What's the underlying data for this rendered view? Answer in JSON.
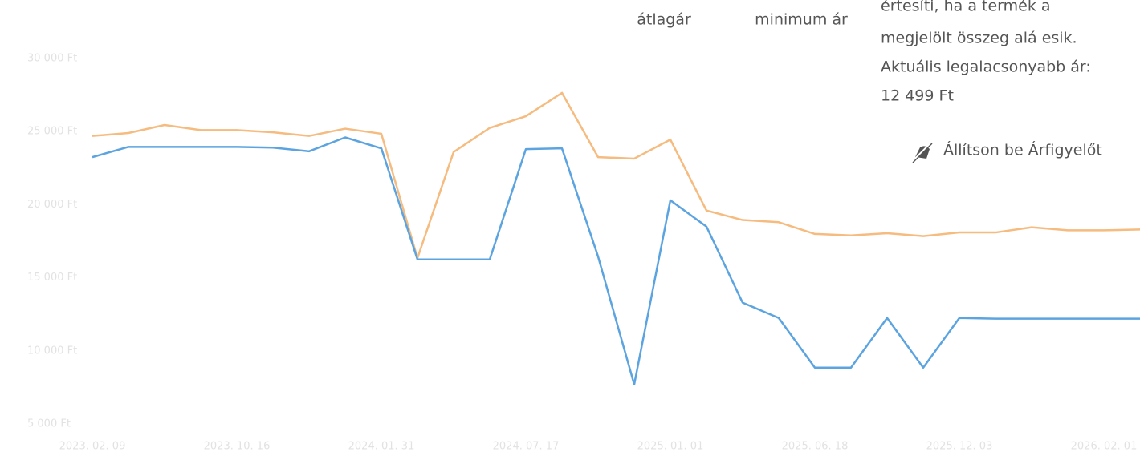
{
  "chart_data": {
    "type": "line",
    "categories": [
      "2023. 02. 09",
      null,
      null,
      null,
      "2023. 10. 16",
      null,
      null,
      null,
      "2024. 01. 31",
      null,
      null,
      null,
      "2024. 07. 17",
      null,
      null,
      null,
      "2025. 01. 01",
      null,
      null,
      null,
      "2025. 06. 18",
      null,
      null,
      null,
      "2025. 12. 03",
      null,
      null,
      null,
      "2026. 02. 01",
      null
    ],
    "series": [
      {
        "name": "átlagár",
        "color": "#f5bb7f",
        "values": [
          24700,
          24900,
          25450,
          25100,
          25100,
          24950,
          24700,
          25200,
          24850,
          16350,
          23600,
          25250,
          26050,
          27650,
          23250,
          23150,
          24450,
          19600,
          18950,
          18800,
          18000,
          17900,
          18050,
          17850,
          18100,
          18100,
          18450,
          18250,
          18250,
          18300
        ]
      },
      {
        "name": "minimum ár",
        "color": "#5ca4e0",
        "values": [
          23250,
          23950,
          23950,
          23950,
          23950,
          23900,
          23650,
          24600,
          23850,
          16250,
          16250,
          16250,
          23800,
          23850,
          16450,
          7700,
          20300,
          18500,
          13300,
          12250,
          8850,
          8850,
          12250,
          8850,
          12250,
          12200,
          12200,
          12200,
          12200,
          12200
        ]
      }
    ],
    "ylim": [
      5000,
      30000
    ],
    "yticks": [
      {
        "value": 5000,
        "label": "5 000 Ft"
      },
      {
        "value": 10000,
        "label": "10 000 Ft"
      },
      {
        "value": 15000,
        "label": "15 000 Ft"
      },
      {
        "value": 20000,
        "label": "20 000 Ft"
      },
      {
        "value": 25000,
        "label": "25 000 Ft"
      },
      {
        "value": 30000,
        "label": "30 000 Ft"
      }
    ],
    "grid": false
  },
  "panel": {
    "lines": [
      "értesíti, ha a termék a",
      "megjelölt összeg alá esik.",
      "Aktuális legalacsonyabb ár:",
      "12 499 Ft"
    ],
    "cta": "Állítson be Árfigyelőt"
  }
}
